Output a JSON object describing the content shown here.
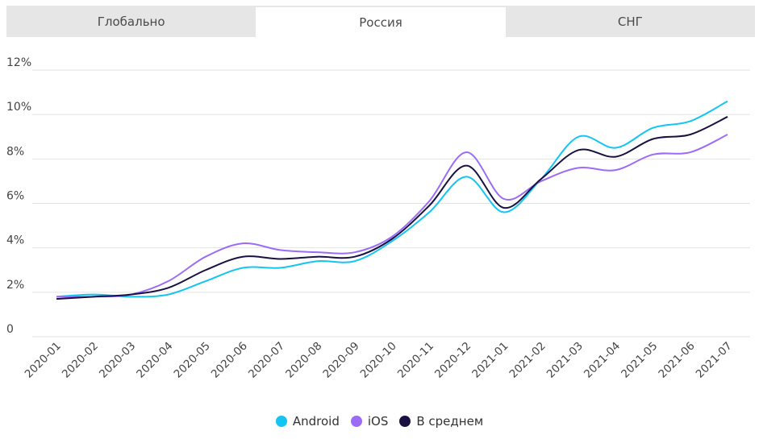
{
  "tabs": [
    {
      "label": "Глобально",
      "active": false
    },
    {
      "label": "Россия",
      "active": true
    },
    {
      "label": "СНГ",
      "active": false
    }
  ],
  "chart_data": {
    "type": "line",
    "title": "",
    "xlabel": "",
    "ylabel": "",
    "categories": [
      "2020-01",
      "2020-02",
      "2020-03",
      "2020-04",
      "2020-05",
      "2020-06",
      "2020-07",
      "2020-08",
      "2020-09",
      "2020-10",
      "2020-11",
      "2020-12",
      "2021-01",
      "2021-02",
      "2021-03",
      "2021-04",
      "2021-05",
      "2021-06",
      "2021-07"
    ],
    "y_ticks": [
      "0",
      "2%",
      "4%",
      "6%",
      "8%",
      "10%",
      "12%"
    ],
    "ylim": [
      0,
      12
    ],
    "grid": true,
    "legend_position": "bottom",
    "series": [
      {
        "name": "Android",
        "color": "#14c4f2",
        "values": [
          1.8,
          1.9,
          1.8,
          1.9,
          2.5,
          3.1,
          3.1,
          3.4,
          3.4,
          4.3,
          5.6,
          7.2,
          5.6,
          7.1,
          9.0,
          8.5,
          9.4,
          9.7,
          10.6
        ]
      },
      {
        "name": "iOS",
        "color": "#9c6cf7",
        "values": [
          1.8,
          1.8,
          1.9,
          2.5,
          3.6,
          4.2,
          3.9,
          3.8,
          3.8,
          4.5,
          6.1,
          8.3,
          6.2,
          7.0,
          7.6,
          7.5,
          8.2,
          8.3,
          9.1
        ]
      },
      {
        "name": "В среднем",
        "color": "#1a1140",
        "values": [
          1.7,
          1.8,
          1.9,
          2.2,
          3.0,
          3.6,
          3.5,
          3.6,
          3.6,
          4.4,
          5.9,
          7.7,
          5.8,
          7.1,
          8.4,
          8.1,
          8.9,
          9.1,
          9.9
        ]
      }
    ]
  }
}
